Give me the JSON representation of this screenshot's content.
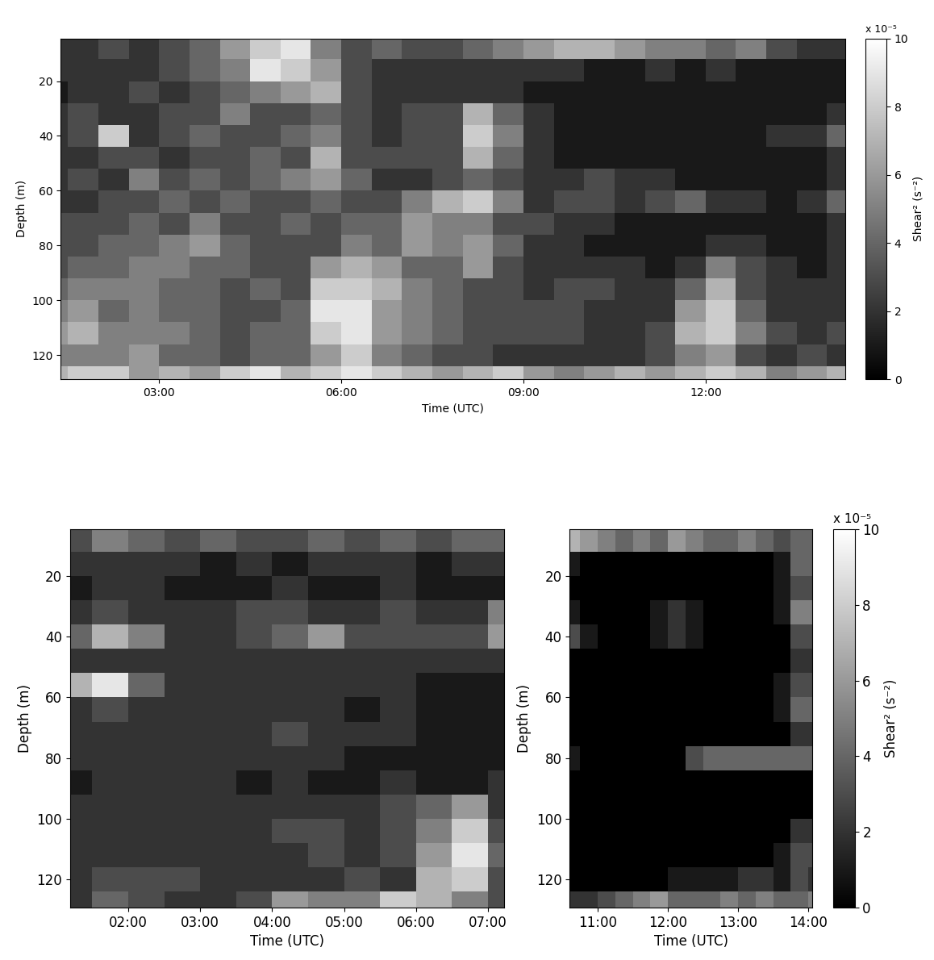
{
  "chart_data": [
    {
      "type": "heatmap",
      "x_label": "Time (UTC)",
      "y_label": "Depth (m)",
      "xlim": [
        1.38,
        14.3
      ],
      "ylim": [
        128.8,
        4.4
      ],
      "xticks": [
        {
          "value": 3,
          "label": "03:00"
        },
        {
          "value": 6,
          "label": "06:00"
        },
        {
          "value": 9,
          "label": "09:00"
        },
        {
          "value": 12,
          "label": "12:00"
        }
      ],
      "yticks": [
        20,
        40,
        60,
        80,
        100,
        120
      ],
      "x_edges": [
        1.0,
        1.5,
        2.0,
        2.5,
        3.0,
        3.5,
        4.0,
        4.5,
        5.0,
        5.5,
        6.0,
        6.5,
        7.0,
        7.5,
        8.0,
        8.5,
        9.0,
        9.5,
        10.0,
        10.5,
        11.0,
        11.5,
        12.0,
        12.5,
        13.0,
        13.5,
        14.0,
        14.5
      ],
      "y_edges": [
        4,
        12,
        20,
        28,
        36,
        44,
        52,
        60,
        68,
        76,
        84,
        92,
        100,
        108,
        116,
        124,
        132
      ],
      "cells": [
        [
          2,
          2,
          3,
          2,
          3,
          4,
          6,
          8,
          9,
          5,
          3,
          4,
          3,
          3,
          4,
          5,
          6,
          7,
          7,
          6,
          5,
          5,
          4,
          5,
          3,
          2,
          2
        ],
        [
          2,
          2,
          2,
          2,
          3,
          4,
          5,
          9,
          8,
          6,
          3,
          2,
          2,
          2,
          2,
          2,
          2,
          2,
          1,
          1,
          2,
          1,
          2,
          1,
          1,
          1,
          1
        ],
        [
          1,
          2,
          2,
          3,
          2,
          3,
          4,
          5,
          6,
          7,
          3,
          2,
          2,
          2,
          2,
          2,
          1,
          1,
          1,
          1,
          1,
          1,
          1,
          1,
          1,
          1,
          1
        ],
        [
          2,
          3,
          2,
          2,
          3,
          3,
          5,
          3,
          3,
          4,
          3,
          2,
          3,
          3,
          7,
          4,
          2,
          1,
          1,
          1,
          1,
          1,
          1,
          1,
          1,
          1,
          2
        ],
        [
          2,
          3,
          8,
          2,
          3,
          4,
          3,
          3,
          4,
          5,
          3,
          2,
          3,
          3,
          8,
          5,
          2,
          1,
          1,
          1,
          1,
          1,
          1,
          1,
          2,
          2,
          4
        ],
        [
          2,
          2,
          3,
          3,
          2,
          3,
          3,
          4,
          3,
          7,
          3,
          3,
          3,
          3,
          7,
          4,
          2,
          1,
          1,
          1,
          1,
          1,
          1,
          1,
          1,
          1,
          2
        ],
        [
          2,
          3,
          2,
          5,
          3,
          4,
          3,
          4,
          5,
          6,
          4,
          2,
          2,
          3,
          4,
          3,
          2,
          2,
          3,
          2,
          2,
          1,
          1,
          1,
          1,
          1,
          2
        ],
        [
          2,
          2,
          3,
          3,
          4,
          3,
          4,
          3,
          3,
          4,
          3,
          3,
          5,
          7,
          8,
          5,
          2,
          3,
          3,
          2,
          3,
          4,
          2,
          2,
          1,
          2,
          4
        ],
        [
          3,
          3,
          3,
          4,
          3,
          5,
          3,
          3,
          4,
          3,
          4,
          4,
          6,
          5,
          5,
          3,
          3,
          2,
          2,
          1,
          1,
          1,
          1,
          1,
          1,
          1,
          2
        ],
        [
          3,
          3,
          4,
          4,
          5,
          6,
          4,
          3,
          3,
          3,
          5,
          4,
          6,
          5,
          6,
          4,
          2,
          2,
          1,
          1,
          1,
          1,
          2,
          2,
          1,
          1,
          2
        ],
        [
          3,
          4,
          4,
          5,
          5,
          4,
          4,
          3,
          3,
          6,
          7,
          6,
          4,
          4,
          6,
          3,
          2,
          2,
          2,
          2,
          1,
          2,
          5,
          3,
          2,
          1,
          2
        ],
        [
          4,
          5,
          5,
          5,
          4,
          4,
          3,
          4,
          3,
          8,
          8,
          7,
          5,
          4,
          3,
          3,
          2,
          3,
          3,
          2,
          2,
          4,
          7,
          3,
          2,
          2,
          2
        ],
        [
          5,
          6,
          4,
          5,
          4,
          4,
          3,
          3,
          4,
          9,
          9,
          6,
          5,
          4,
          3,
          3,
          3,
          3,
          2,
          2,
          2,
          6,
          8,
          4,
          2,
          2,
          2
        ],
        [
          6,
          7,
          5,
          5,
          5,
          4,
          3,
          4,
          4,
          8,
          9,
          6,
          5,
          4,
          3,
          3,
          3,
          3,
          2,
          2,
          3,
          7,
          8,
          5,
          3,
          2,
          3
        ],
        [
          5,
          5,
          5,
          6,
          4,
          4,
          3,
          4,
          4,
          6,
          8,
          5,
          4,
          3,
          3,
          2,
          2,
          2,
          2,
          2,
          3,
          5,
          6,
          3,
          2,
          3,
          2
        ],
        [
          7,
          8,
          8,
          6,
          7,
          6,
          8,
          9,
          7,
          8,
          9,
          8,
          7,
          6,
          7,
          8,
          6,
          5,
          6,
          7,
          6,
          7,
          8,
          7,
          5,
          6,
          7
        ]
      ],
      "color_range": [
        0,
        10
      ],
      "colorbar": {
        "label": "Shear² (s⁻²)",
        "multiplier": "x 10⁻⁵",
        "ticks": [
          0,
          2,
          4,
          6,
          8,
          10
        ]
      }
    },
    {
      "type": "heatmap",
      "x_label": "Time (UTC)",
      "y_label": "Depth (m)",
      "xlim": [
        1.19,
        7.23
      ],
      "ylim": [
        129.3,
        4.6
      ],
      "xticks": [
        {
          "value": 2,
          "label": "02:00"
        },
        {
          "value": 3,
          "label": "03:00"
        },
        {
          "value": 4,
          "label": "04:00"
        },
        {
          "value": 5,
          "label": "05:00"
        },
        {
          "value": 6,
          "label": "06:00"
        },
        {
          "value": 7,
          "label": "07:00"
        }
      ],
      "yticks": [
        20,
        40,
        60,
        80,
        100,
        120
      ],
      "x_edges": [
        1.0,
        1.5,
        2.0,
        2.5,
        3.0,
        3.5,
        4.0,
        4.5,
        5.0,
        5.5,
        6.0,
        6.5,
        7.0,
        7.5
      ],
      "y_edges": [
        4,
        12,
        20,
        28,
        36,
        44,
        52,
        60,
        68,
        76,
        84,
        92,
        100,
        108,
        116,
        124,
        132
      ],
      "cells": [
        [
          3,
          5,
          4,
          3,
          4,
          3,
          3,
          4,
          3,
          4,
          3,
          4,
          4
        ],
        [
          2,
          2,
          2,
          2,
          1,
          2,
          1,
          2,
          2,
          2,
          1,
          2,
          2
        ],
        [
          1,
          2,
          2,
          1,
          1,
          1,
          2,
          1,
          1,
          2,
          1,
          1,
          1
        ],
        [
          2,
          3,
          2,
          2,
          2,
          3,
          3,
          2,
          2,
          3,
          2,
          2,
          5
        ],
        [
          4,
          7,
          5,
          2,
          2,
          3,
          4,
          6,
          3,
          3,
          3,
          3,
          6
        ],
        [
          2,
          2,
          2,
          2,
          2,
          2,
          2,
          2,
          2,
          2,
          2,
          2,
          2
        ],
        [
          7,
          9,
          4,
          2,
          2,
          2,
          2,
          2,
          2,
          2,
          1,
          1,
          1
        ],
        [
          2,
          3,
          2,
          2,
          2,
          2,
          2,
          2,
          1,
          2,
          1,
          1,
          1
        ],
        [
          2,
          2,
          2,
          2,
          2,
          2,
          3,
          2,
          2,
          2,
          1,
          1,
          1
        ],
        [
          2,
          2,
          2,
          2,
          2,
          2,
          2,
          2,
          1,
          1,
          1,
          1,
          1
        ],
        [
          1,
          2,
          2,
          2,
          2,
          1,
          2,
          1,
          1,
          2,
          1,
          1,
          2
        ],
        [
          2,
          2,
          2,
          2,
          2,
          2,
          2,
          2,
          2,
          3,
          4,
          6,
          2
        ],
        [
          2,
          2,
          2,
          2,
          2,
          2,
          3,
          3,
          2,
          3,
          5,
          8,
          3
        ],
        [
          2,
          2,
          2,
          2,
          2,
          2,
          2,
          3,
          2,
          3,
          6,
          9,
          4
        ],
        [
          2,
          3,
          3,
          3,
          2,
          2,
          2,
          2,
          3,
          2,
          7,
          8,
          3
        ],
        [
          2,
          4,
          3,
          2,
          2,
          3,
          6,
          5,
          5,
          8,
          7,
          5,
          3
        ]
      ],
      "color_range": [
        0,
        10
      ]
    },
    {
      "type": "heatmap",
      "x_label": "Time (UTC)",
      "y_label": "Depth (m)",
      "xlim": [
        10.6,
        14.06
      ],
      "ylim": [
        129.3,
        4.6
      ],
      "xticks": [
        {
          "value": 11,
          "label": "11:00"
        },
        {
          "value": 12,
          "label": "12:00"
        },
        {
          "value": 13,
          "label": "13:00"
        },
        {
          "value": 14,
          "label": "14:00"
        }
      ],
      "yticks": [
        20,
        40,
        60,
        80,
        100,
        120
      ],
      "x_edges": [
        10.5,
        10.75,
        11.0,
        11.25,
        11.5,
        11.75,
        12.0,
        12.25,
        12.5,
        12.75,
        13.0,
        13.25,
        13.5,
        13.75,
        14.0,
        14.25
      ],
      "y_edges": [
        4,
        12,
        20,
        28,
        36,
        44,
        52,
        60,
        68,
        76,
        84,
        92,
        100,
        108,
        116,
        124,
        132
      ],
      "cells": [
        [
          7,
          6,
          5,
          4,
          5,
          4,
          6,
          5,
          4,
          4,
          5,
          4,
          3,
          4,
          4
        ],
        [
          1,
          0,
          0,
          0,
          0,
          0,
          0,
          0,
          0,
          0,
          0,
          0,
          1,
          4,
          4
        ],
        [
          0,
          0,
          0,
          0,
          0,
          0,
          0,
          0,
          0,
          0,
          0,
          0,
          1,
          3,
          3
        ],
        [
          1,
          0,
          0,
          0,
          0,
          1,
          2,
          1,
          0,
          0,
          0,
          0,
          1,
          5,
          5
        ],
        [
          3,
          1,
          0,
          0,
          0,
          1,
          2,
          1,
          0,
          0,
          0,
          0,
          0,
          3,
          3
        ],
        [
          0,
          0,
          0,
          0,
          0,
          0,
          0,
          0,
          0,
          0,
          0,
          0,
          0,
          2,
          2
        ],
        [
          0,
          0,
          0,
          0,
          0,
          0,
          0,
          0,
          0,
          0,
          0,
          0,
          1,
          3,
          3
        ],
        [
          0,
          0,
          0,
          0,
          0,
          0,
          0,
          0,
          0,
          0,
          0,
          0,
          1,
          4,
          4
        ],
        [
          0,
          0,
          0,
          0,
          0,
          0,
          0,
          0,
          0,
          0,
          0,
          0,
          0,
          2,
          2
        ],
        [
          1,
          0,
          0,
          0,
          0,
          0,
          0,
          3,
          4,
          4,
          4,
          4,
          4,
          4,
          4
        ],
        [
          0,
          0,
          0,
          0,
          0,
          0,
          0,
          0,
          0,
          0,
          0,
          0,
          0,
          0,
          0
        ],
        [
          0,
          0,
          0,
          0,
          0,
          0,
          0,
          0,
          0,
          0,
          0,
          0,
          0,
          0,
          0
        ],
        [
          0,
          0,
          0,
          0,
          0,
          0,
          0,
          0,
          0,
          0,
          0,
          0,
          0,
          2,
          2
        ],
        [
          0,
          0,
          0,
          0,
          0,
          0,
          0,
          0,
          0,
          0,
          0,
          0,
          1,
          3,
          3
        ],
        [
          0,
          0,
          0,
          0,
          0,
          0,
          1,
          1,
          1,
          1,
          2,
          2,
          1,
          3,
          2
        ],
        [
          2,
          2,
          3,
          4,
          5,
          6,
          4,
          4,
          4,
          5,
          4,
          5,
          4,
          4,
          5
        ]
      ],
      "color_range": [
        0,
        10
      ],
      "colorbar": {
        "label": "Shear² (s⁻²)",
        "multiplier": "x 10⁻⁵",
        "ticks": [
          0,
          2,
          4,
          6,
          8,
          10
        ]
      }
    }
  ]
}
